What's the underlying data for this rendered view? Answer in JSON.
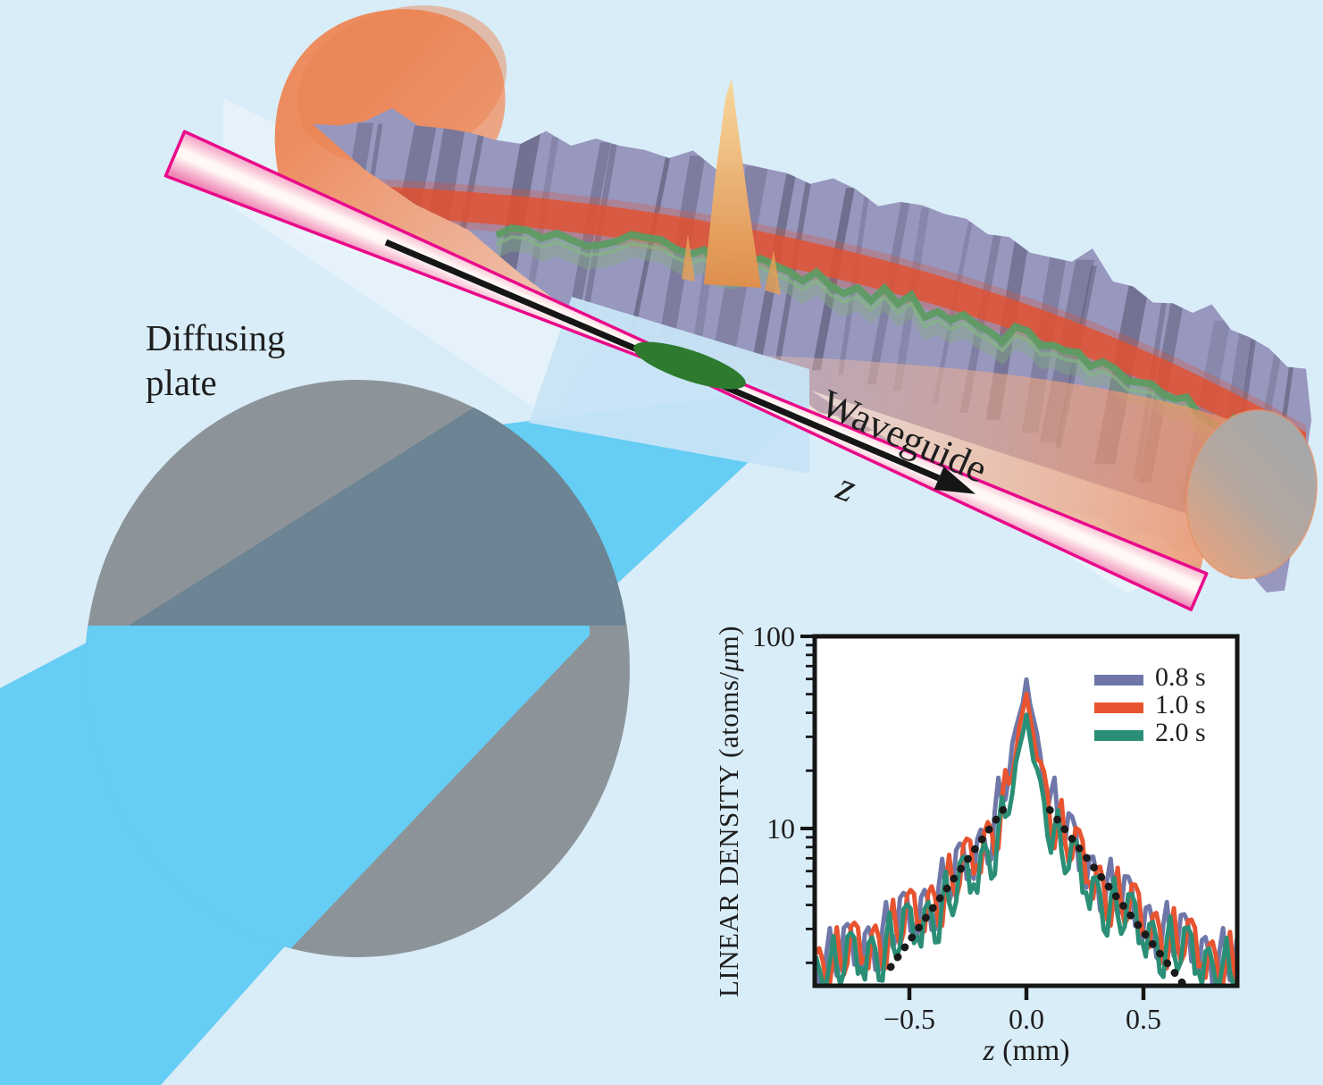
{
  "figure": {
    "background": "#D9EDF8",
    "diffusing_plate_label": {
      "line1": "Diffusing",
      "line2": "plate"
    },
    "waveguide_label": "Waveguide",
    "z_arrow_label": "z",
    "colors": {
      "beam_blue": "#66CDF4",
      "plate_gray": "#8D9499",
      "beam_through_plate": "#6C8493",
      "beam_focus_pale": "#C7E4F5",
      "light_wedge": "#EFF7FC",
      "tube_border_magenta": "#E9098A",
      "tube_pink": "#F08AB8",
      "tube_core": "#FFF8F4",
      "laser_cone_orange": "#ED8757",
      "cylinder_cap_gray": "#A3A8AC",
      "speckle_slate": "#9897BE",
      "speckle_shadow": "#55546F",
      "speckle_red_stripe": "#E2502F",
      "density_ridge_green": "#5E9B63",
      "bec_green": "#2E7B2F",
      "density_peak_orange": "#F2B763",
      "arrow_black": "#161616"
    }
  },
  "chart": {
    "y_axis_title_parts": {
      "prefix": "LINEAR DENSITY (atoms/",
      "mu": "μ",
      "suffix": "m)"
    },
    "x_axis_title_parts": {
      "var": "z",
      "rest": " (mm)"
    },
    "y_tick_labels": [
      "100",
      "10"
    ],
    "x_tick_labels": [
      "−0.5",
      "0.0",
      "0.5"
    ]
  },
  "chart_data": {
    "type": "line",
    "xlabel": "z (mm)",
    "ylabel": "LINEAR DENSITY (atoms/μm)",
    "log_y": true,
    "x_range_mm": [
      -0.9,
      0.9
    ],
    "y_range": [
      1.55,
      100
    ],
    "x_ticks": [
      -0.5,
      0.0,
      0.5
    ],
    "y_major_ticks": [
      100,
      10
    ],
    "y_minor_ticks": [
      90,
      80,
      70,
      60,
      50,
      40,
      30,
      20,
      9,
      8,
      7,
      6,
      5,
      4,
      3,
      2
    ],
    "grid": false,
    "legend_position": "top-right",
    "sample_step_mm": 0.015,
    "noise_pattern": [
      1.0,
      0.74,
      1.28,
      0.88,
      1.42,
      0.68,
      1.12,
      0.82,
      1.34,
      0.94,
      0.66,
      1.18,
      0.86,
      1.38,
      0.78,
      1.06
    ],
    "series": [
      {
        "name": "0.8 s",
        "color": "#6F77A9",
        "peak_atoms_per_um": 60,
        "model": {
          "A1": 45,
          "l1_mm": 0.045,
          "A2": 13,
          "l2_mm": 0.26,
          "floor": 1.62
        },
        "noise_phase": 0
      },
      {
        "name": "1.0 s",
        "color": "#E8542F",
        "peak_atoms_per_um": 50,
        "model": {
          "A1": 36,
          "l1_mm": 0.045,
          "A2": 12.5,
          "l2_mm": 0.26,
          "floor": 1.6
        },
        "noise_phase": 6
      },
      {
        "name": "2.0 s",
        "color": "#2B8E76",
        "peak_atoms_per_um": 40,
        "model": {
          "A1": 27,
          "l1_mm": 0.042,
          "A2": 10.5,
          "l2_mm": 0.25,
          "floor": 1.55
        },
        "noise_phase": 11
      }
    ],
    "exponential_fit": {
      "color": "#1A1A1A",
      "style": "dotted",
      "segments_mm": [
        [
          -0.58,
          1.9,
          -0.1,
          12.5
        ],
        [
          0.1,
          12.5,
          0.67,
          1.55
        ]
      ]
    }
  }
}
